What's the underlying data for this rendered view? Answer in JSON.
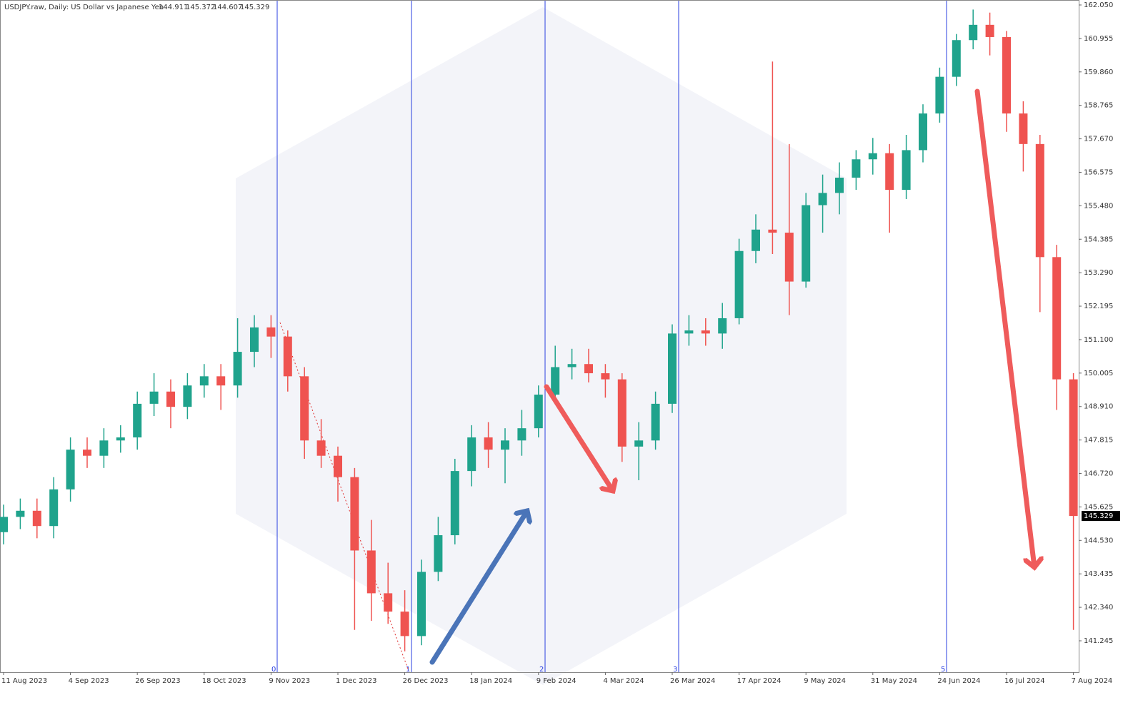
{
  "header": {
    "symbol": "USDJPY.raw, Daily:  US Dollar vs Japanese Yen",
    "ohlc": [
      144.911,
      145.372,
      144.607,
      145.329
    ]
  },
  "period_markers": [
    "0",
    "1",
    "2",
    "3",
    "5"
  ],
  "chart_data": {
    "type": "candlestick",
    "categories": [
      "11 Aug 2023",
      null,
      null,
      null,
      "4 Sep 2023",
      null,
      null,
      null,
      "26 Sep 2023",
      null,
      null,
      null,
      "18 Oct 2023",
      null,
      null,
      null,
      "9 Nov 2023",
      null,
      null,
      null,
      "1 Dec 2023",
      null,
      null,
      null,
      "26 Dec 2023",
      null,
      null,
      null,
      "18 Jan 2024",
      null,
      null,
      null,
      "9 Feb 2024",
      null,
      null,
      null,
      "4 Mar 2024",
      null,
      null,
      null,
      "26 Mar 2024",
      null,
      null,
      null,
      "17 Apr 2024",
      null,
      null,
      null,
      "9 May 2024",
      null,
      null,
      null,
      "31 May 2024",
      null,
      null,
      null,
      "24 Jun 2024",
      null,
      null,
      null,
      "16 Jul 2024",
      null,
      null,
      null,
      "7 Aug 2024"
    ],
    "open": [
      144.8,
      145.3,
      145.5,
      145.0,
      146.2,
      147.5,
      147.3,
      147.8,
      147.9,
      149.0,
      149.4,
      148.9,
      149.6,
      149.9,
      149.6,
      150.7,
      151.5,
      151.2,
      149.9,
      147.8,
      147.3,
      146.6,
      144.2,
      142.8,
      142.2,
      141.4,
      143.5,
      144.7,
      146.8,
      147.9,
      147.5,
      147.8,
      148.2,
      149.3,
      150.2,
      150.3,
      150.0,
      149.8,
      147.6,
      147.8,
      149.0,
      151.3,
      151.4,
      151.3,
      151.8,
      154.0,
      154.7,
      154.6,
      153.0,
      155.5,
      155.9,
      156.4,
      157.0,
      157.2,
      156.0,
      157.3,
      158.5,
      159.7,
      160.9,
      161.4,
      161.0,
      158.5,
      157.5,
      153.8,
      149.8
    ],
    "high": [
      145.7,
      145.9,
      145.9,
      146.6,
      147.9,
      147.9,
      148.2,
      148.3,
      149.4,
      150.0,
      149.8,
      150.0,
      150.3,
      150.3,
      151.8,
      151.9,
      151.9,
      151.4,
      150.2,
      148.5,
      147.6,
      146.9,
      145.2,
      143.8,
      142.9,
      143.9,
      145.3,
      147.2,
      148.3,
      148.4,
      148.2,
      148.8,
      149.6,
      150.9,
      150.8,
      150.8,
      150.3,
      150.0,
      148.4,
      149.4,
      151.6,
      151.9,
      151.8,
      152.3,
      154.4,
      155.2,
      160.2,
      157.5,
      155.9,
      156.5,
      156.9,
      157.3,
      157.7,
      157.5,
      157.8,
      158.8,
      160.0,
      161.1,
      161.9,
      161.8,
      161.2,
      158.9,
      157.8,
      154.2,
      150.0
    ],
    "low": [
      144.4,
      144.9,
      144.6,
      144.6,
      145.8,
      146.9,
      146.9,
      147.4,
      147.5,
      148.6,
      148.2,
      148.5,
      149.2,
      148.8,
      149.2,
      150.2,
      150.5,
      149.4,
      147.2,
      146.9,
      145.8,
      141.6,
      141.9,
      141.8,
      140.9,
      141.1,
      143.2,
      144.4,
      146.3,
      146.9,
      146.4,
      147.3,
      147.9,
      149.0,
      149.8,
      149.7,
      149.2,
      147.1,
      146.5,
      147.5,
      148.7,
      150.9,
      150.9,
      150.8,
      151.6,
      153.6,
      153.9,
      151.9,
      152.8,
      154.6,
      155.2,
      156.0,
      156.5,
      154.6,
      155.7,
      156.9,
      158.2,
      159.4,
      160.6,
      160.4,
      157.9,
      156.6,
      152.0,
      148.8,
      141.6
    ],
    "close": [
      145.3,
      145.5,
      145.0,
      146.2,
      147.5,
      147.3,
      147.8,
      147.9,
      149.0,
      149.4,
      148.9,
      149.6,
      149.9,
      149.6,
      150.7,
      151.5,
      151.2,
      149.9,
      147.8,
      147.3,
      146.6,
      144.2,
      142.8,
      142.2,
      141.4,
      143.5,
      144.7,
      146.8,
      147.9,
      147.5,
      147.8,
      148.2,
      149.3,
      150.2,
      150.3,
      150.0,
      149.8,
      147.6,
      147.8,
      149.0,
      151.3,
      151.4,
      151.3,
      151.8,
      154.0,
      154.7,
      154.6,
      153.0,
      155.5,
      155.9,
      156.4,
      157.0,
      157.2,
      156.0,
      157.3,
      158.5,
      159.7,
      160.9,
      161.4,
      161.0,
      158.5,
      157.5,
      153.8,
      149.8,
      145.329
    ],
    "up_color": "#1fa38c",
    "down_color": "#ef5350",
    "ylim": [
      140.218,
      162.213
    ],
    "yticks": [
      {
        "value": 162.05,
        "label": "162.050"
      },
      {
        "value": 160.955,
        "label": "160.955"
      },
      {
        "value": 159.86,
        "label": "159.860"
      },
      {
        "value": 158.765,
        "label": "158.765"
      },
      {
        "value": 157.67,
        "label": "157.670"
      },
      {
        "value": 156.575,
        "label": "156.575"
      },
      {
        "value": 155.48,
        "label": "155.480"
      },
      {
        "value": 154.385,
        "label": "154.385"
      },
      {
        "value": 153.29,
        "label": "153.290"
      },
      {
        "value": 152.195,
        "label": "152.195"
      },
      {
        "value": 151.1,
        "label": "151.100"
      },
      {
        "value": 150.005,
        "label": "150.005"
      },
      {
        "value": 148.91,
        "label": "148.910"
      },
      {
        "value": 147.815,
        "label": "147.815"
      },
      {
        "value": 146.72,
        "label": "146.720"
      },
      {
        "value": 145.625,
        "label": "145.625"
      },
      {
        "value": 144.53,
        "label": "144.530"
      },
      {
        "value": 143.435,
        "label": "143.435"
      },
      {
        "value": 142.34,
        "label": "142.340"
      },
      {
        "value": 141.245,
        "label": "141.245"
      }
    ]
  }
}
